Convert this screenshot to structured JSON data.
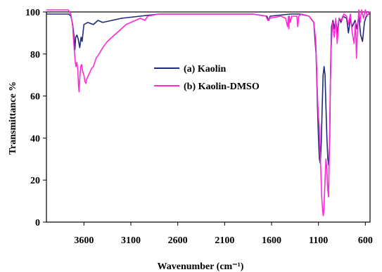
{
  "chart_data": {
    "type": "line",
    "xlabel": "Wavenumber (cm⁻¹)",
    "ylabel": "Transmittance %",
    "xlim": [
      4000,
      550
    ],
    "ylim": [
      0,
      100
    ],
    "x_ticks": [
      3600,
      3100,
      2600,
      2100,
      1600,
      1100,
      600
    ],
    "y_ticks": [
      0,
      20,
      40,
      60,
      80,
      100
    ],
    "grid": false,
    "legend_position": "center",
    "series": [
      {
        "name": "(a) Kaolin",
        "color": "#1f2a7a",
        "points": [
          [
            4000,
            99
          ],
          [
            3850,
            99
          ],
          [
            3760,
            99
          ],
          [
            3740,
            98
          ],
          [
            3720,
            94
          ],
          [
            3705,
            88
          ],
          [
            3697,
            82
          ],
          [
            3688,
            88
          ],
          [
            3675,
            89
          ],
          [
            3660,
            87
          ],
          [
            3645,
            83
          ],
          [
            3630,
            88
          ],
          [
            3620,
            86
          ],
          [
            3600,
            94
          ],
          [
            3560,
            95
          ],
          [
            3500,
            94
          ],
          [
            3450,
            96
          ],
          [
            3400,
            95
          ],
          [
            3300,
            96
          ],
          [
            3200,
            97
          ],
          [
            3000,
            98
          ],
          [
            2800,
            99
          ],
          [
            2600,
            99
          ],
          [
            2400,
            99
          ],
          [
            2200,
            99
          ],
          [
            2000,
            99
          ],
          [
            1800,
            99
          ],
          [
            1650,
            98
          ],
          [
            1630,
            96
          ],
          [
            1615,
            98
          ],
          [
            1400,
            99
          ],
          [
            1300,
            99
          ],
          [
            1200,
            98
          ],
          [
            1150,
            95
          ],
          [
            1125,
            80
          ],
          [
            1110,
            55
          ],
          [
            1100,
            40
          ],
          [
            1090,
            30
          ],
          [
            1080,
            28
          ],
          [
            1070,
            38
          ],
          [
            1060,
            55
          ],
          [
            1050,
            70
          ],
          [
            1040,
            74
          ],
          [
            1030,
            70
          ],
          [
            1020,
            55
          ],
          [
            1010,
            40
          ],
          [
            1000,
            30
          ],
          [
            990,
            27
          ],
          [
            980,
            40
          ],
          [
            970,
            75
          ],
          [
            960,
            93
          ],
          [
            945,
            96
          ],
          [
            930,
            92
          ],
          [
            915,
            96
          ],
          [
            900,
            90
          ],
          [
            880,
            97
          ],
          [
            860,
            95
          ],
          [
            840,
            98
          ],
          [
            800,
            97
          ],
          [
            780,
            90
          ],
          [
            760,
            97
          ],
          [
            740,
            93
          ],
          [
            710,
            96
          ],
          [
            690,
            92
          ],
          [
            670,
            98
          ],
          [
            650,
            89
          ],
          [
            630,
            86
          ],
          [
            610,
            95
          ],
          [
            590,
            98
          ],
          [
            570,
            99
          ],
          [
            550,
            99
          ]
        ]
      },
      {
        "name": "(b) Kaolin-DMSO",
        "color": "#ff2bd6",
        "points": [
          [
            4000,
            101
          ],
          [
            3850,
            101
          ],
          [
            3770,
            101
          ],
          [
            3740,
            99
          ],
          [
            3720,
            93
          ],
          [
            3708,
            85
          ],
          [
            3700,
            80
          ],
          [
            3692,
            76
          ],
          [
            3685,
            74
          ],
          [
            3675,
            76
          ],
          [
            3665,
            72
          ],
          [
            3658,
            65
          ],
          [
            3652,
            62
          ],
          [
            3645,
            68
          ],
          [
            3635,
            74
          ],
          [
            3625,
            75
          ],
          [
            3618,
            73
          ],
          [
            3610,
            71
          ],
          [
            3600,
            70
          ],
          [
            3590,
            67
          ],
          [
            3580,
            66
          ],
          [
            3570,
            68
          ],
          [
            3550,
            70
          ],
          [
            3520,
            73
          ],
          [
            3500,
            74
          ],
          [
            3470,
            78
          ],
          [
            3440,
            80
          ],
          [
            3400,
            83
          ],
          [
            3350,
            86
          ],
          [
            3300,
            88
          ],
          [
            3250,
            90
          ],
          [
            3200,
            92
          ],
          [
            3150,
            94
          ],
          [
            3100,
            95
          ],
          [
            3050,
            96
          ],
          [
            3000,
            97
          ],
          [
            2950,
            96
          ],
          [
            2920,
            98
          ],
          [
            2800,
            99
          ],
          [
            2600,
            99
          ],
          [
            2400,
            99
          ],
          [
            2200,
            99
          ],
          [
            2000,
            99
          ],
          [
            1800,
            99
          ],
          [
            1660,
            98
          ],
          [
            1640,
            96
          ],
          [
            1625,
            97
          ],
          [
            1500,
            98
          ],
          [
            1450,
            97
          ],
          [
            1430,
            93
          ],
          [
            1420,
            98
          ],
          [
            1415,
            92
          ],
          [
            1410,
            98
          ],
          [
            1400,
            95
          ],
          [
            1385,
            98
          ],
          [
            1330,
            98
          ],
          [
            1320,
            93
          ],
          [
            1310,
            98
          ],
          [
            1280,
            99
          ],
          [
            1200,
            98
          ],
          [
            1150,
            95
          ],
          [
            1130,
            87
          ],
          [
            1120,
            75
          ],
          [
            1110,
            60
          ],
          [
            1100,
            50
          ],
          [
            1090,
            45
          ],
          [
            1085,
            36
          ],
          [
            1075,
            25
          ],
          [
            1065,
            12
          ],
          [
            1055,
            5
          ],
          [
            1048,
            3
          ],
          [
            1040,
            8
          ],
          [
            1030,
            20
          ],
          [
            1020,
            30
          ],
          [
            1010,
            25
          ],
          [
            1000,
            15
          ],
          [
            992,
            12
          ],
          [
            985,
            30
          ],
          [
            975,
            60
          ],
          [
            965,
            82
          ],
          [
            950,
            95
          ],
          [
            930,
            88
          ],
          [
            915,
            97
          ],
          [
            900,
            85
          ],
          [
            880,
            97
          ],
          [
            850,
            96
          ],
          [
            830,
            99
          ],
          [
            800,
            98
          ],
          [
            780,
            94
          ],
          [
            760,
            99
          ],
          [
            740,
            90
          ],
          [
            720,
            85
          ],
          [
            705,
            95
          ],
          [
            695,
            78
          ],
          [
            685,
            90
          ],
          [
            670,
            101
          ],
          [
            655,
            95
          ],
          [
            640,
            101
          ],
          [
            620,
            97
          ],
          [
            600,
            101
          ],
          [
            580,
            98
          ],
          [
            560,
            100
          ],
          [
            550,
            100
          ]
        ]
      }
    ]
  }
}
